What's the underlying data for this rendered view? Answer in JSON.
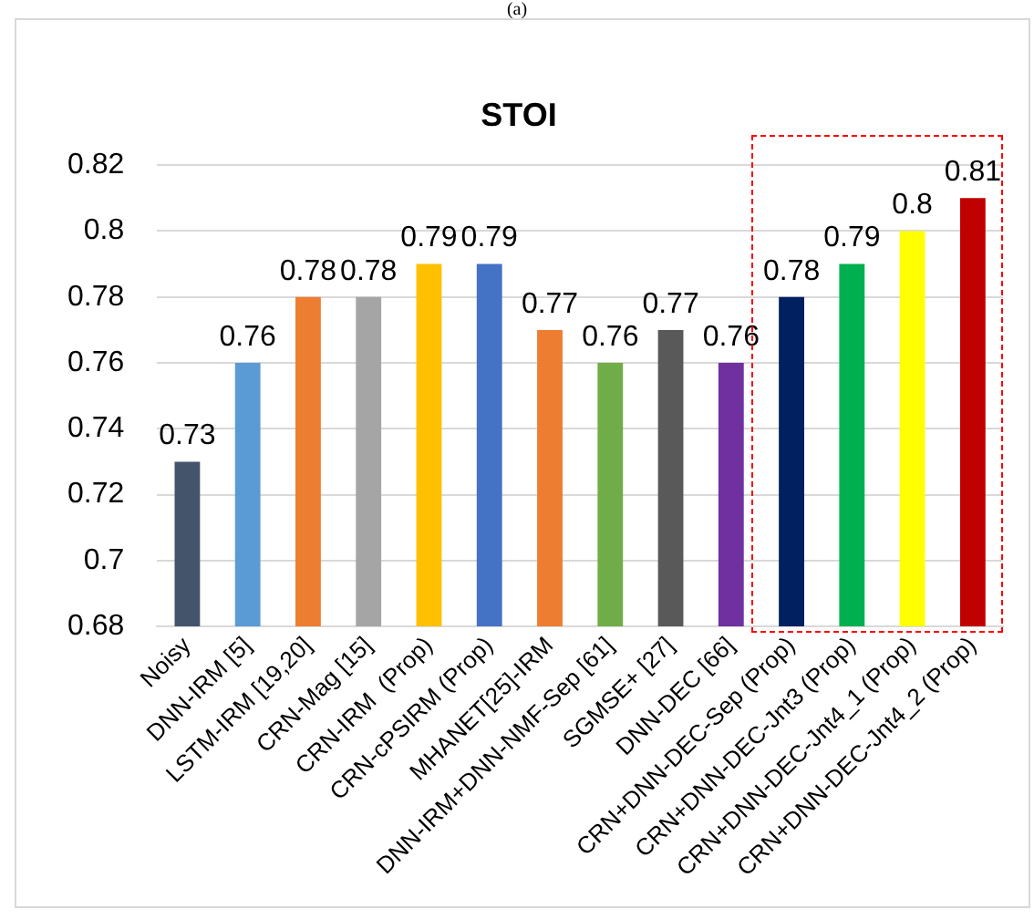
{
  "chart_data": {
    "type": "bar",
    "title": "STOI",
    "annotations": [
      "(a)"
    ],
    "categories": [
      "Noisy",
      "DNN-IRM [5]",
      "LSTM-IRM [19,20]",
      "CRN-Mag [15]",
      "CRN-IRM  (Prop)",
      "CRN-cPSIRM (Prop)",
      "MHANET[25]-IRM",
      "DNN-IRM+DNN-NMF-Sep [61]",
      "SGMSE+ [27]",
      "DNN-DEC [66]",
      "CRN+DNN-DEC-Sep (Prop)",
      "CRN+DNN-DEC-Jnt3 (Prop)",
      "CRN+DNN-DEC-Jnt4_1 (Prop)",
      "CRN+DNN-DEC-Jnt4_2 (Prop)"
    ],
    "values": [
      0.73,
      0.76,
      0.78,
      0.78,
      0.79,
      0.79,
      0.77,
      0.76,
      0.77,
      0.76,
      0.78,
      0.79,
      0.8,
      0.81
    ],
    "colors": [
      "#44546a",
      "#5b9bd5",
      "#ed7d31",
      "#a5a5a5",
      "#ffc000",
      "#4472c4",
      "#ed7d31",
      "#70ad47",
      "#595959",
      "#7030a0",
      "#002060",
      "#00b050",
      "#ffff00",
      "#c00000"
    ],
    "ylim": [
      0.68,
      0.82
    ],
    "yticks": [
      0.68,
      0.7,
      0.72,
      0.74,
      0.76,
      0.78,
      0.8,
      0.82
    ],
    "grid": "y",
    "data_labels": true,
    "legend": false
  }
}
